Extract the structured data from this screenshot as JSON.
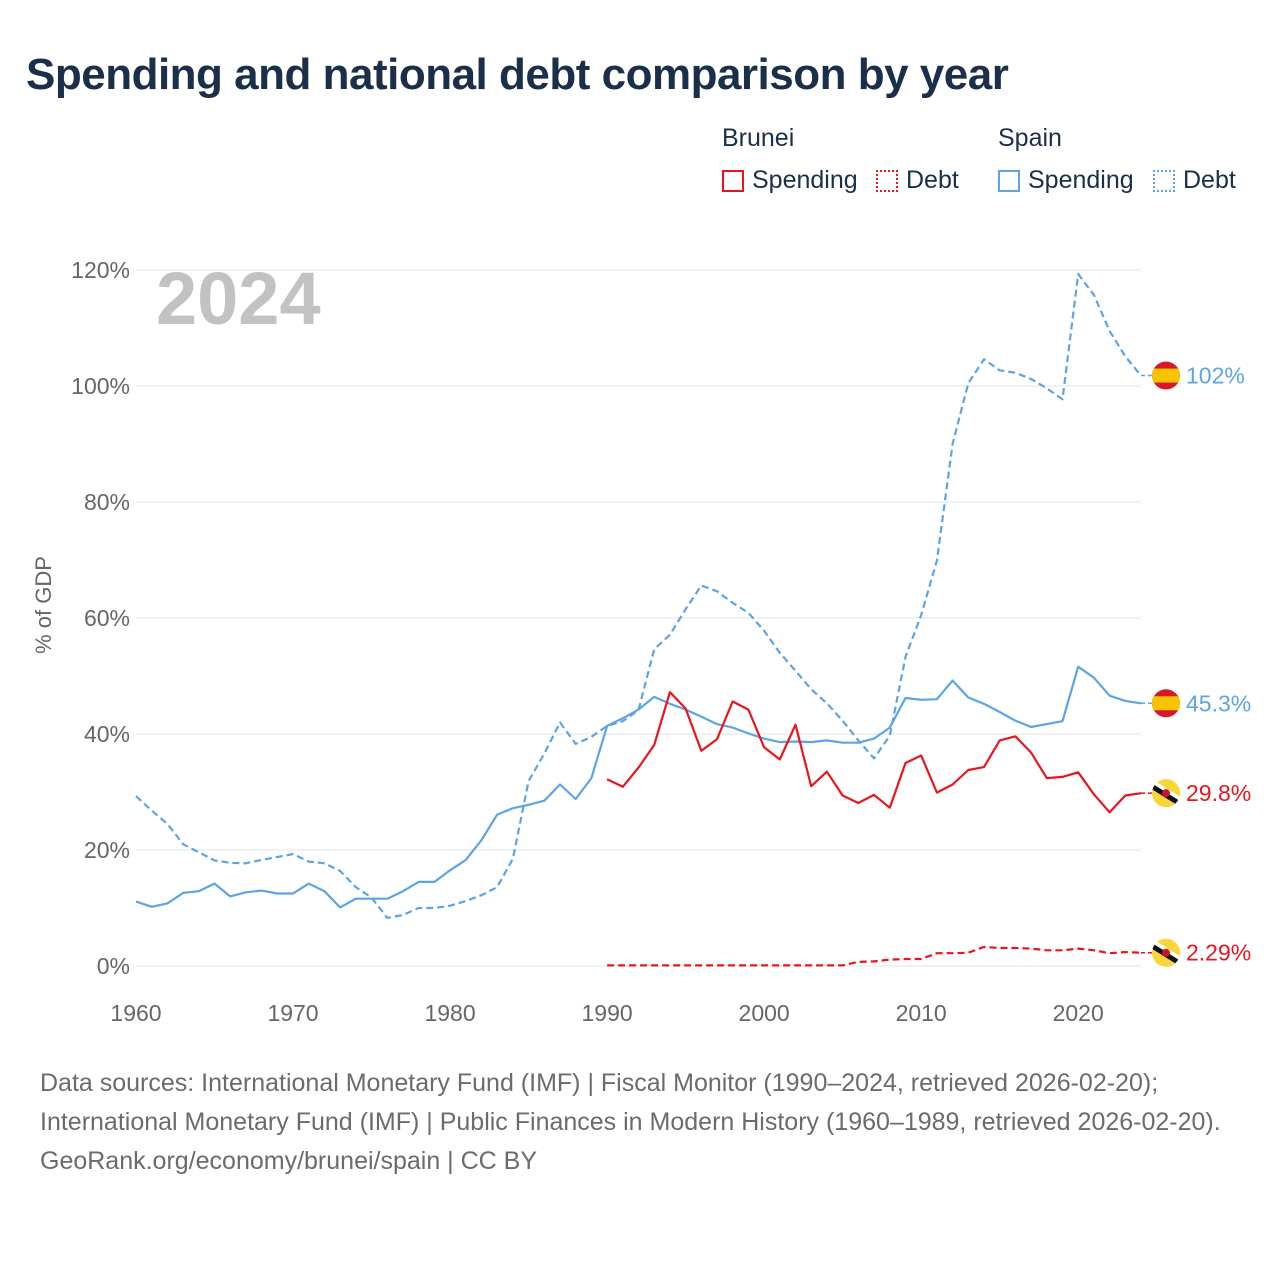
{
  "title": "Spending and national debt comparison by year",
  "legend": {
    "groups": [
      {
        "name": "Brunei",
        "color": "#e8161c",
        "spending_label": "Spending",
        "debt_label": "Debt"
      },
      {
        "name": "Spain",
        "color": "#5ba4e6",
        "spending_label": "Spending",
        "debt_label": "Debt"
      }
    ]
  },
  "year_watermark": "2024",
  "footer": {
    "sources": "Data sources: International Monetary Fund (IMF) | Fiscal Monitor (1990–2024, retrieved 2026-02-20); International Monetary Fund (IMF) | Public Finances in Modern History (1960–1989, retrieved 2026-02-20).",
    "credit": "GeoRank.org/economy/brunei/spain | CC BY"
  },
  "chart_data": {
    "type": "line",
    "title": "Spending and national debt comparison by year",
    "xlabel": "",
    "ylabel": "% of GDP",
    "xlim": [
      1960,
      2024
    ],
    "ylim": [
      0,
      120
    ],
    "x_ticks": [
      1960,
      1970,
      1980,
      1990,
      2000,
      2010,
      2020
    ],
    "y_ticks": [
      0,
      20,
      40,
      60,
      80,
      100,
      120
    ],
    "y_tick_labels": [
      "0%",
      "20%",
      "40%",
      "60%",
      "80%",
      "100%",
      "120%"
    ],
    "grid": true,
    "legend_position": "top-right",
    "series": [
      {
        "name": "Spain Debt",
        "country": "Spain",
        "metric": "Debt",
        "color": "#5ba4e6",
        "dashed": true,
        "end_label": "102%",
        "flag": "spain",
        "start_year": 1960,
        "values": [
          29.3,
          26.8,
          24.5,
          21.0,
          19.6,
          18.2,
          17.8,
          17.7,
          18.3,
          18.8,
          19.3,
          18.0,
          17.7,
          16.4,
          13.6,
          11.8,
          8.3,
          8.8,
          10.0,
          10.0,
          10.4,
          11.2,
          12.2,
          13.6,
          18.5,
          31.9,
          36.6,
          42.0,
          38.3,
          39.5,
          41.4,
          42.2,
          44.1,
          54.6,
          57.1,
          61.5,
          65.6,
          64.6,
          62.6,
          60.9,
          57.8,
          54.0,
          50.9,
          47.7,
          45.3,
          42.3,
          38.9,
          35.8,
          39.7,
          53.3,
          60.5,
          69.9,
          90.0,
          100.5,
          104.6,
          102.7,
          102.3,
          101.2,
          99.6,
          97.7,
          119.3,
          115.7,
          109.5,
          105.1,
          101.8
        ]
      },
      {
        "name": "Spain Spending",
        "country": "Spain",
        "metric": "Spending",
        "color": "#5ba4e6",
        "dashed": false,
        "end_label": "45.3%",
        "flag": "spain",
        "start_year": 1960,
        "values": [
          11.1,
          10.2,
          10.8,
          12.6,
          12.9,
          14.2,
          12.0,
          12.7,
          13.0,
          12.5,
          12.5,
          14.2,
          12.9,
          10.1,
          11.6,
          11.6,
          11.6,
          12.9,
          14.5,
          14.5,
          16.5,
          18.3,
          21.7,
          26.1,
          27.2,
          27.8,
          28.5,
          31.3,
          28.8,
          32.4,
          41.4,
          42.7,
          44.2,
          46.4,
          45.2,
          44.2,
          43.0,
          41.7,
          41.1,
          40.1,
          39.2,
          38.6,
          38.7,
          38.6,
          38.9,
          38.5,
          38.5,
          39.2,
          41.1,
          46.2,
          45.9,
          46.0,
          49.2,
          46.3,
          45.2,
          43.8,
          42.3,
          41.2,
          41.7,
          42.2,
          51.6,
          49.7,
          46.6,
          45.7,
          45.3
        ]
      },
      {
        "name": "Brunei Spending",
        "country": "Brunei",
        "metric": "Spending",
        "color": "#e8161c",
        "dashed": false,
        "end_label": "29.8%",
        "flag": "brunei",
        "start_year": 1990,
        "values": [
          32.2,
          30.9,
          34.2,
          38.1,
          47.2,
          44.4,
          37.1,
          39.1,
          45.6,
          44.2,
          37.7,
          35.6,
          41.6,
          31.0,
          33.5,
          29.4,
          28.1,
          29.5,
          27.3,
          35.0,
          36.3,
          29.9,
          31.3,
          33.8,
          34.3,
          38.9,
          39.6,
          36.8,
          32.4,
          32.6,
          33.4,
          29.6,
          26.5,
          29.4,
          29.8
        ]
      },
      {
        "name": "Brunei Debt",
        "country": "Brunei",
        "metric": "Debt",
        "color": "#e8161c",
        "dashed": true,
        "end_label": "2.29%",
        "flag": "brunei",
        "start_year": 1990,
        "values": [
          0.1,
          0.1,
          0.1,
          0.1,
          0.1,
          0.1,
          0.1,
          0.1,
          0.1,
          0.1,
          0.1,
          0.1,
          0.1,
          0.1,
          0.1,
          0.1,
          0.7,
          0.8,
          1.1,
          1.2,
          1.2,
          2.2,
          2.2,
          2.3,
          3.3,
          3.1,
          3.1,
          3.0,
          2.7,
          2.7,
          3.0,
          2.7,
          2.2,
          2.4,
          2.29
        ]
      }
    ]
  }
}
